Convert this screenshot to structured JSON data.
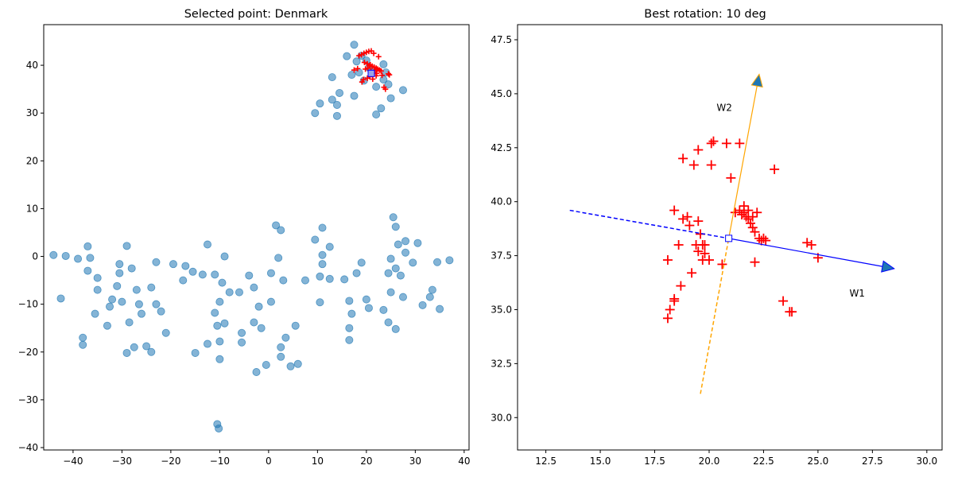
{
  "chart_data": [
    {
      "type": "scatter",
      "title": "Selected point: Denmark",
      "xlim": [
        -46,
        41
      ],
      "ylim": [
        -40.5,
        48.5
      ],
      "xticks": [
        -40,
        -30,
        -20,
        -10,
        0,
        10,
        20,
        30,
        40
      ],
      "yticks": [
        -40,
        -30,
        -20,
        -10,
        0,
        10,
        20,
        30,
        40
      ],
      "colors": {
        "points": "#1f77b4",
        "neighbors": "#ff0000",
        "selected": "#0000ff"
      },
      "series": [
        {
          "values": [
            [
              -44,
              0.3
            ],
            [
              -41.5,
              0.1
            ],
            [
              -39,
              -0.5
            ],
            [
              -37,
              2.1
            ],
            [
              -36.5,
              -0.3
            ],
            [
              -37,
              -3
            ],
            [
              -35,
              -4.5
            ],
            [
              -35,
              -7
            ],
            [
              -35.5,
              -12
            ],
            [
              -32.5,
              -10.5
            ],
            [
              -32,
              -9
            ],
            [
              -31,
              -6.2
            ],
            [
              -30.5,
              -3.5
            ],
            [
              -30.5,
              -1.6
            ],
            [
              -29,
              2.2
            ],
            [
              -28,
              -2.5
            ],
            [
              -30,
              -9.5
            ],
            [
              -28.5,
              -13.8
            ],
            [
              -33,
              -14.5
            ],
            [
              -27,
              -7
            ],
            [
              -26.5,
              -10
            ],
            [
              -26,
              -12
            ],
            [
              -24,
              -6.5
            ],
            [
              -23,
              -10
            ],
            [
              -22,
              -11.5
            ],
            [
              -23,
              -1.2
            ],
            [
              -19.5,
              -1.6
            ],
            [
              -17.5,
              -5
            ],
            [
              -17,
              -2
            ],
            [
              -15.5,
              -3.2
            ],
            [
              -13.5,
              -3.8
            ],
            [
              -12.5,
              2.5
            ],
            [
              -11,
              -3.8
            ],
            [
              -9.5,
              -5.5
            ],
            [
              -9,
              0
            ],
            [
              -10,
              -9.5
            ],
            [
              -8,
              -7.5
            ],
            [
              -6,
              -7.5
            ],
            [
              -4,
              -4
            ],
            [
              -3,
              -6.5
            ],
            [
              -2,
              -10.5
            ],
            [
              -11,
              -11.8
            ],
            [
              -10.5,
              -14.5
            ],
            [
              -9,
              -14
            ],
            [
              -5.5,
              -16
            ],
            [
              -3,
              -13.8
            ],
            [
              -1.5,
              -15
            ],
            [
              0.5,
              -9.5
            ],
            [
              0.5,
              -3.5
            ],
            [
              2,
              -0.3
            ],
            [
              1.5,
              6.5
            ],
            [
              2.5,
              5.5
            ],
            [
              3,
              -5
            ],
            [
              3.5,
              -17
            ],
            [
              2.5,
              -19
            ],
            [
              2.5,
              -21
            ],
            [
              4.5,
              -23
            ],
            [
              6,
              -22.5
            ],
            [
              5.5,
              -14.5
            ],
            [
              -2.5,
              -24.2
            ],
            [
              -10,
              -21.5
            ],
            [
              -12.5,
              -18.3
            ],
            [
              -10,
              -17.8
            ],
            [
              -5.5,
              -18
            ],
            [
              -0.5,
              -22.7
            ],
            [
              -15,
              -20.2
            ],
            [
              -21,
              -16
            ],
            [
              -24,
              -20
            ],
            [
              -25,
              -18.8
            ],
            [
              -27.5,
              -19
            ],
            [
              -29,
              -20.2
            ],
            [
              -38,
              -18.5
            ],
            [
              -38,
              -17
            ],
            [
              -42.5,
              -8.8
            ],
            [
              -10.5,
              -35.1
            ],
            [
              -10.2,
              -36
            ],
            [
              7.5,
              -5
            ],
            [
              9.5,
              3.5
            ],
            [
              11,
              6
            ],
            [
              12.5,
              2
            ],
            [
              11,
              0.3
            ],
            [
              10.5,
              -4.2
            ],
            [
              12.5,
              -4.7
            ],
            [
              11,
              -1.6
            ],
            [
              10.5,
              -9.6
            ],
            [
              15.5,
              -4.8
            ],
            [
              16.5,
              -9.3
            ],
            [
              17,
              -12
            ],
            [
              16.5,
              -15
            ],
            [
              16.5,
              -17.5
            ],
            [
              18,
              -3.5
            ],
            [
              19,
              -1.3
            ],
            [
              20,
              -9
            ],
            [
              20.5,
              -10.8
            ],
            [
              23.5,
              -11.2
            ],
            [
              24.5,
              -13.8
            ],
            [
              26,
              -15.2
            ],
            [
              24.5,
              -3.5
            ],
            [
              26,
              -2.5
            ],
            [
              27,
              -4
            ],
            [
              25,
              -7.5
            ],
            [
              27.5,
              -8.5
            ],
            [
              25,
              -0.5
            ],
            [
              26.5,
              2.5
            ],
            [
              26,
              6.2
            ],
            [
              25.5,
              8.2
            ],
            [
              28,
              3.2
            ],
            [
              28,
              0.8
            ],
            [
              29.5,
              -1.3
            ],
            [
              30.5,
              2.8
            ],
            [
              31.5,
              -10.2
            ],
            [
              33,
              -8.5
            ],
            [
              33.5,
              -7
            ],
            [
              34.5,
              -1.2
            ],
            [
              35,
              -11
            ],
            [
              37,
              -0.8
            ],
            [
              9.5,
              30
            ],
            [
              10.5,
              32
            ],
            [
              13,
              32.8
            ],
            [
              14,
              31.7
            ],
            [
              14,
              29.4
            ],
            [
              13,
              37.5
            ],
            [
              14.5,
              34.2
            ],
            [
              16,
              41.9
            ],
            [
              17,
              38
            ],
            [
              17.5,
              33.6
            ],
            [
              17.5,
              44.3
            ],
            [
              18,
              40.8
            ],
            [
              18.5,
              38.5
            ],
            [
              19.5,
              36.8
            ],
            [
              20.5,
              39.5
            ],
            [
              21,
              39
            ],
            [
              22,
              35.5
            ],
            [
              22,
              29.7
            ],
            [
              23,
              31
            ],
            [
              23.5,
              37
            ],
            [
              23.5,
              40.2
            ],
            [
              24.5,
              36
            ],
            [
              25,
              33.1
            ],
            [
              27.5,
              34.8
            ],
            [
              24,
              38.5
            ],
            [
              20,
              41
            ],
            [
              19,
              42
            ]
          ]
        },
        {
          "values": [
            [
              18.5,
              42
            ],
            [
              19,
              42.2
            ],
            [
              19.5,
              42.5
            ],
            [
              20,
              42.7
            ],
            [
              20.5,
              42.9
            ],
            [
              21,
              43
            ],
            [
              21.5,
              42.5
            ],
            [
              22.5,
              41.8
            ],
            [
              17.5,
              39
            ],
            [
              18.2,
              39.3
            ],
            [
              19.6,
              40.6
            ],
            [
              20.2,
              40.3
            ],
            [
              20.8,
              40.1
            ],
            [
              21.2,
              39.8
            ],
            [
              21.6,
              39.6
            ],
            [
              22,
              39.4
            ],
            [
              22.3,
              39.2
            ],
            [
              22.7,
              39
            ],
            [
              23,
              38.8
            ],
            [
              21.5,
              38.2
            ],
            [
              22,
              37.8
            ],
            [
              19.8,
              39.2
            ],
            [
              20.3,
              39.4
            ],
            [
              20.9,
              38.8
            ],
            [
              21.4,
              38.5
            ],
            [
              22.1,
              38.3
            ],
            [
              23.2,
              37.9
            ],
            [
              24.5,
              38.2
            ],
            [
              24.7,
              38
            ],
            [
              23.6,
              35.4
            ],
            [
              23.9,
              35
            ],
            [
              19.4,
              37
            ],
            [
              20.2,
              37.3
            ],
            [
              20.7,
              37.6
            ],
            [
              21.3,
              37.1
            ],
            [
              19.1,
              36.5
            ],
            [
              20.6,
              39.9
            ],
            [
              21.8,
              38.9
            ]
          ]
        }
      ],
      "selected": [
        21,
        38.3
      ]
    },
    {
      "type": "scatter",
      "title": "Best rotation: 10 deg",
      "xlim": [
        11.2,
        30.7
      ],
      "ylim": [
        28.5,
        48.2
      ],
      "xticks": [
        12.5,
        15.0,
        17.5,
        20.0,
        22.5,
        25.0,
        27.5,
        30.0
      ],
      "yticks": [
        30.0,
        32.5,
        35.0,
        37.5,
        40.0,
        42.5,
        45.0,
        47.5
      ],
      "tick_format": "1dp",
      "colors": {
        "neighbors": "#ff0000",
        "w1": "#0000ff",
        "w2": "#ffa500",
        "arrow_head": "#1f77b4",
        "selected": "#0000ff"
      },
      "series": [
        {
          "values": [
            [
              18.8,
              42.0
            ],
            [
              19.3,
              41.7
            ],
            [
              19.5,
              42.4
            ],
            [
              20.1,
              42.7
            ],
            [
              20.2,
              42.8
            ],
            [
              20.8,
              42.7
            ],
            [
              21.4,
              42.7
            ],
            [
              20.1,
              41.7
            ],
            [
              21.0,
              41.1
            ],
            [
              23.0,
              41.5
            ],
            [
              18.4,
              39.6
            ],
            [
              18.8,
              39.2
            ],
            [
              19.0,
              39.3
            ],
            [
              19.1,
              38.9
            ],
            [
              19.5,
              39.1
            ],
            [
              19.6,
              38.5
            ],
            [
              20.6,
              37.1
            ],
            [
              19.4,
              38.0
            ],
            [
              19.7,
              38.0
            ],
            [
              19.8,
              38.0
            ],
            [
              18.6,
              38.0
            ],
            [
              19.5,
              37.7
            ],
            [
              19.8,
              37.6
            ],
            [
              20.0,
              37.3
            ],
            [
              19.7,
              37.3
            ],
            [
              18.1,
              37.3
            ],
            [
              19.2,
              36.7
            ],
            [
              18.7,
              36.1
            ],
            [
              18.4,
              35.5
            ],
            [
              18.4,
              35.4
            ],
            [
              18.2,
              35.0
            ],
            [
              18.1,
              34.6
            ],
            [
              21.2,
              39.5
            ],
            [
              21.4,
              39.6
            ],
            [
              21.5,
              39.4
            ],
            [
              21.6,
              39.8
            ],
            [
              21.7,
              39.3
            ],
            [
              21.8,
              39.2
            ],
            [
              21.9,
              39.0
            ],
            [
              22.0,
              38.8
            ],
            [
              22.1,
              38.6
            ],
            [
              22.0,
              39.3
            ],
            [
              22.2,
              39.5
            ],
            [
              21.6,
              39.5
            ],
            [
              21.8,
              39.6
            ],
            [
              22.3,
              38.3
            ],
            [
              22.4,
              38.2
            ],
            [
              22.5,
              38.3
            ],
            [
              22.6,
              38.2
            ],
            [
              22.1,
              37.2
            ],
            [
              24.5,
              38.1
            ],
            [
              24.7,
              38.0
            ],
            [
              25.0,
              37.4
            ],
            [
              23.4,
              35.4
            ],
            [
              23.7,
              34.9
            ],
            [
              23.8,
              34.9
            ]
          ]
        }
      ],
      "selected": [
        20.9,
        38.3
      ],
      "w1": {
        "label": "W1",
        "start": [
          13.6,
          39.6
        ],
        "end": [
          28.5,
          36.9
        ],
        "label_at": [
          26.8,
          35.6
        ]
      },
      "w2": {
        "label": "W2",
        "start": [
          19.6,
          31.1
        ],
        "end": [
          22.3,
          45.9
        ],
        "label_at": [
          20.7,
          44.2
        ]
      }
    }
  ]
}
